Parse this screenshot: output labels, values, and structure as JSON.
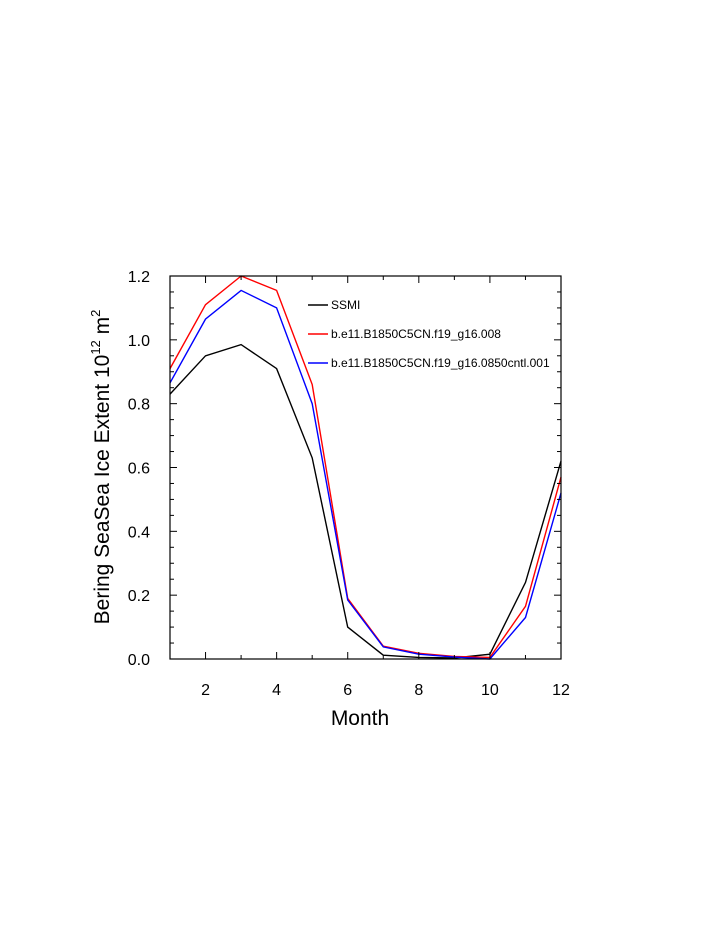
{
  "chart_data": {
    "type": "line",
    "title": "",
    "xlabel": "Month",
    "ylabel_main": "Bering SeaSea Ice Extent 10",
    "ylabel_exp": "12",
    "ylabel_unit": " m",
    "ylabel_unit_exp": "2",
    "xlim": [
      1,
      12
    ],
    "ylim": [
      0.0,
      1.2
    ],
    "x_ticks": [
      2,
      4,
      6,
      8,
      10,
      12
    ],
    "y_ticks": [
      0.0,
      0.2,
      0.4,
      0.6,
      0.8,
      1.0,
      1.2
    ],
    "y_tick_labels": [
      "0.0",
      "0.2",
      "0.4",
      "0.6",
      "0.8",
      "1.0",
      "1.2"
    ],
    "grid": false,
    "legend_position": "top-right",
    "x": [
      1,
      2,
      3,
      4,
      5,
      6,
      7,
      8,
      9,
      10,
      11,
      12
    ],
    "series": [
      {
        "name": "SSMI",
        "color": "#000000",
        "values": [
          0.83,
          0.95,
          0.985,
          0.91,
          0.63,
          0.1,
          0.012,
          0.005,
          0.003,
          0.015,
          0.24,
          0.62
        ]
      },
      {
        "name": "b.e11.B1850C5CN.f19_g16.008",
        "color": "#ff0000",
        "values": [
          0.91,
          1.11,
          1.2,
          1.155,
          0.86,
          0.19,
          0.04,
          0.018,
          0.008,
          0.005,
          0.165,
          0.57
        ]
      },
      {
        "name": "b.e11.B1850C5CN.f19_g16.0850cntl.001",
        "color": "#0000ff",
        "values": [
          0.865,
          1.065,
          1.155,
          1.1,
          0.8,
          0.185,
          0.038,
          0.015,
          0.006,
          0.0,
          0.13,
          0.52
        ]
      }
    ]
  }
}
